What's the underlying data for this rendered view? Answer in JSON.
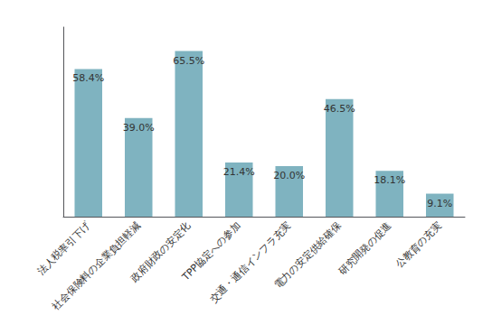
{
  "chart_data": {
    "type": "bar",
    "categories": [
      "法人税率引下げ",
      "社会保険料の企業負担軽減",
      "政府財政の安定化",
      "TPP協定への参加",
      "交通・通信インフラ充実",
      "電力の安定供給確保",
      "研究開発の促進",
      "公教育の充実"
    ],
    "values": [
      58.4,
      39.0,
      65.5,
      21.4,
      20.0,
      46.5,
      18.1,
      9.1
    ],
    "value_labels": [
      "58.4%",
      "39.0%",
      "65.5%",
      "21.4%",
      "20.0%",
      "46.5%",
      "18.1%",
      "9.1%"
    ],
    "data_labels": true,
    "color": "#7fb3c0",
    "ylim": [
      0,
      75
    ],
    "grid": false,
    "tick_labels": "x"
  }
}
